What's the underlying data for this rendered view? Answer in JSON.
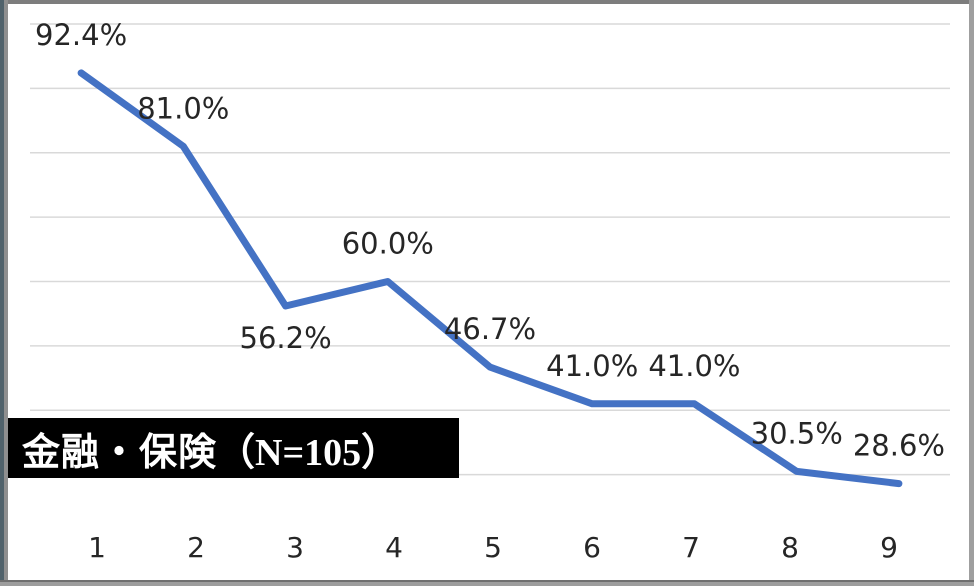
{
  "title": {
    "main": "金融・保険",
    "sample": "（N=105）",
    "full": "金融・保険（N=105）"
  },
  "chart_data": {
    "type": "line",
    "categories": [
      "1",
      "2",
      "3",
      "4",
      "5",
      "6",
      "7",
      "8",
      "9"
    ],
    "values": [
      92.4,
      81.0,
      56.2,
      60.0,
      46.7,
      41.0,
      41.0,
      30.5,
      28.6
    ],
    "point_labels": [
      "92.4%",
      "81.0%",
      "56.2%",
      "60.0%",
      "46.7%",
      "41.0%",
      "41.0%",
      "30.5%",
      "28.6%"
    ],
    "label_placement": [
      "above",
      "above",
      "below",
      "above",
      "above",
      "above",
      "above",
      "above",
      "above"
    ],
    "title": "金融・保険（N=105）",
    "xlabel": "",
    "ylabel": "",
    "ylim": [
      20,
      100
    ],
    "gridline_values": [
      100,
      90,
      80,
      70,
      60,
      50,
      40,
      30
    ],
    "grid": "horizontal-only",
    "y_axis_tick_labels": "none",
    "legend": "none",
    "colors": {
      "line": "#4472C4",
      "gridline": "#D9D9D9",
      "label_text": "#262626",
      "title_bg": "#000000",
      "title_text": "#FFFFFF"
    }
  }
}
